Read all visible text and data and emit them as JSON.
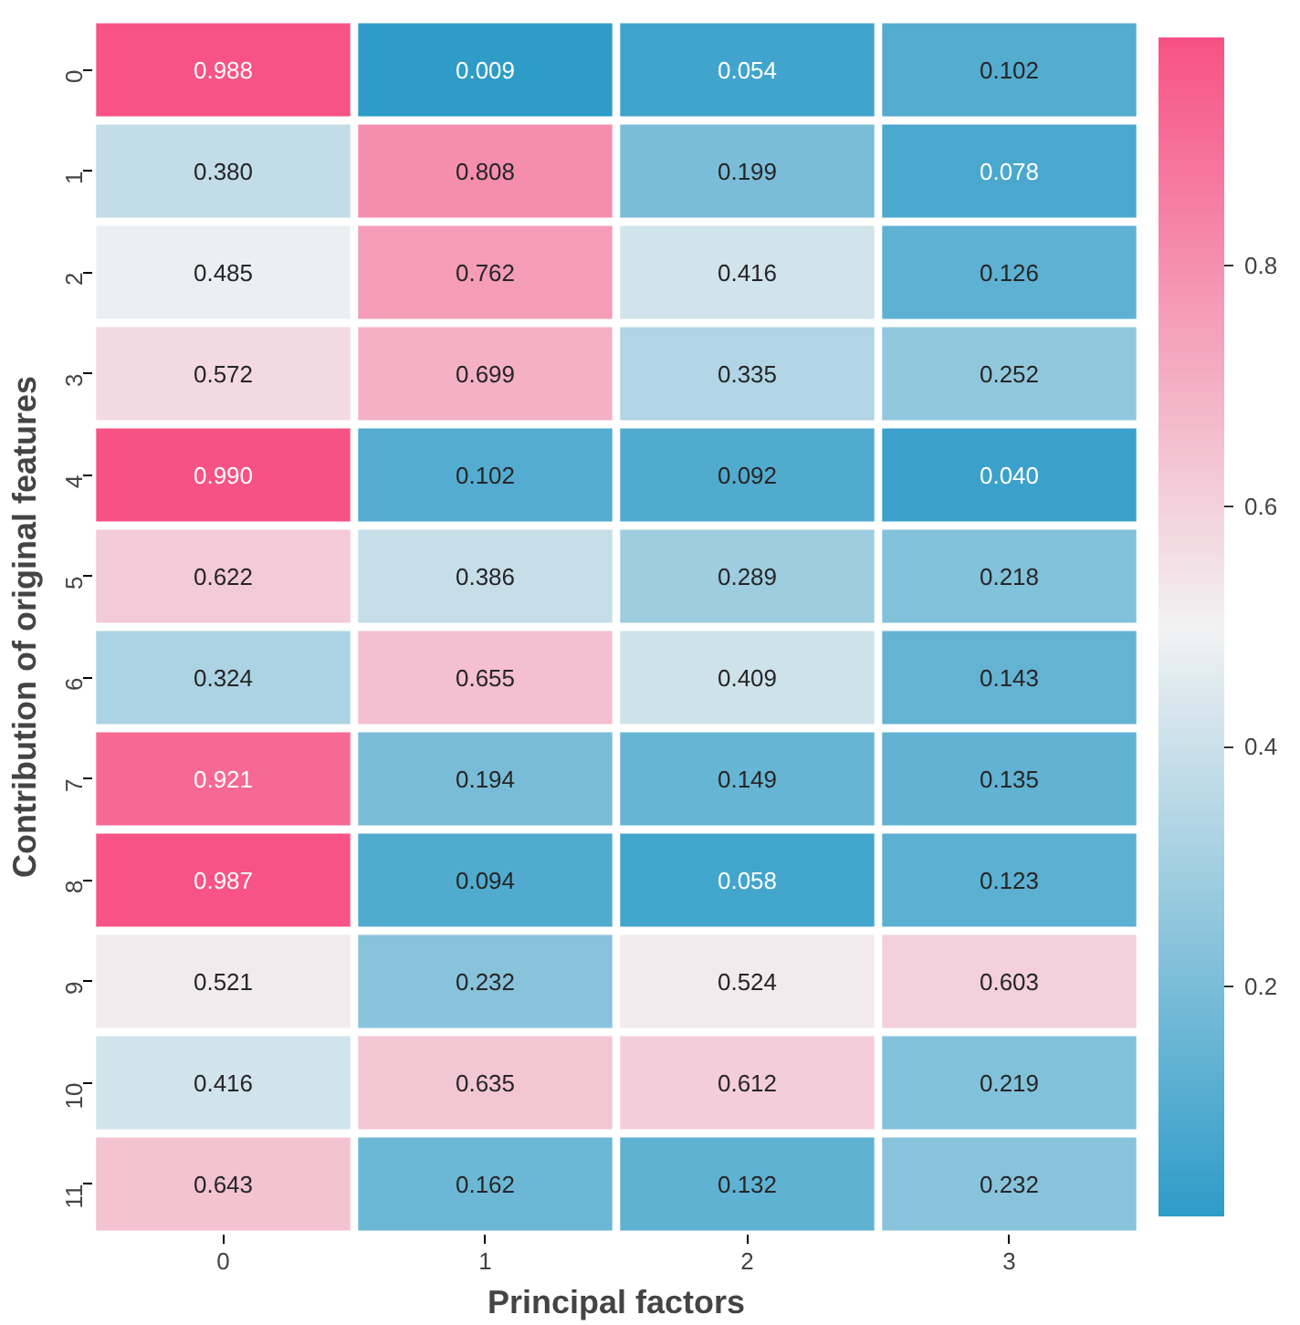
{
  "chart_data": {
    "type": "heatmap",
    "xlabel": "Principal factors",
    "ylabel": "Contribution of original features",
    "categories": [
      "0",
      "1",
      "2",
      "3"
    ],
    "y_categories": [
      "0",
      "1",
      "2",
      "3",
      "4",
      "5",
      "6",
      "7",
      "8",
      "9",
      "10",
      "11"
    ],
    "cells": [
      [
        0.988,
        0.009,
        0.054,
        0.102
      ],
      [
        0.38,
        0.808,
        0.199,
        0.078
      ],
      [
        0.485,
        0.762,
        0.416,
        0.126
      ],
      [
        0.572,
        0.699,
        0.335,
        0.252
      ],
      [
        0.99,
        0.102,
        0.092,
        0.04
      ],
      [
        0.622,
        0.386,
        0.289,
        0.218
      ],
      [
        0.324,
        0.655,
        0.409,
        0.143
      ],
      [
        0.921,
        0.194,
        0.149,
        0.135
      ],
      [
        0.987,
        0.094,
        0.058,
        0.123
      ],
      [
        0.521,
        0.232,
        0.524,
        0.603
      ],
      [
        0.416,
        0.635,
        0.612,
        0.219
      ],
      [
        0.643,
        0.162,
        0.132,
        0.232
      ]
    ],
    "cell_labels": [
      [
        "0.988",
        "0.009",
        "0.054",
        "0.102"
      ],
      [
        "0.380",
        "0.808",
        "0.199",
        "0.078"
      ],
      [
        "0.485",
        "0.762",
        "0.416",
        "0.126"
      ],
      [
        "0.572",
        "0.699",
        "0.335",
        "0.252"
      ],
      [
        "0.990",
        "0.102",
        "0.092",
        "0.040"
      ],
      [
        "0.622",
        "0.386",
        "0.289",
        "0.218"
      ],
      [
        "0.324",
        "0.655",
        "0.409",
        "0.143"
      ],
      [
        "0.921",
        "0.194",
        "0.149",
        "0.135"
      ],
      [
        "0.987",
        "0.094",
        "0.058",
        "0.123"
      ],
      [
        "0.521",
        "0.232",
        "0.524",
        "0.603"
      ],
      [
        "0.416",
        "0.635",
        "0.612",
        "0.219"
      ],
      [
        "0.643",
        "0.162",
        "0.132",
        "0.232"
      ]
    ],
    "clim": [
      0.009,
      0.99
    ],
    "cticks": [
      0.2,
      0.4,
      0.6,
      0.8
    ]
  }
}
